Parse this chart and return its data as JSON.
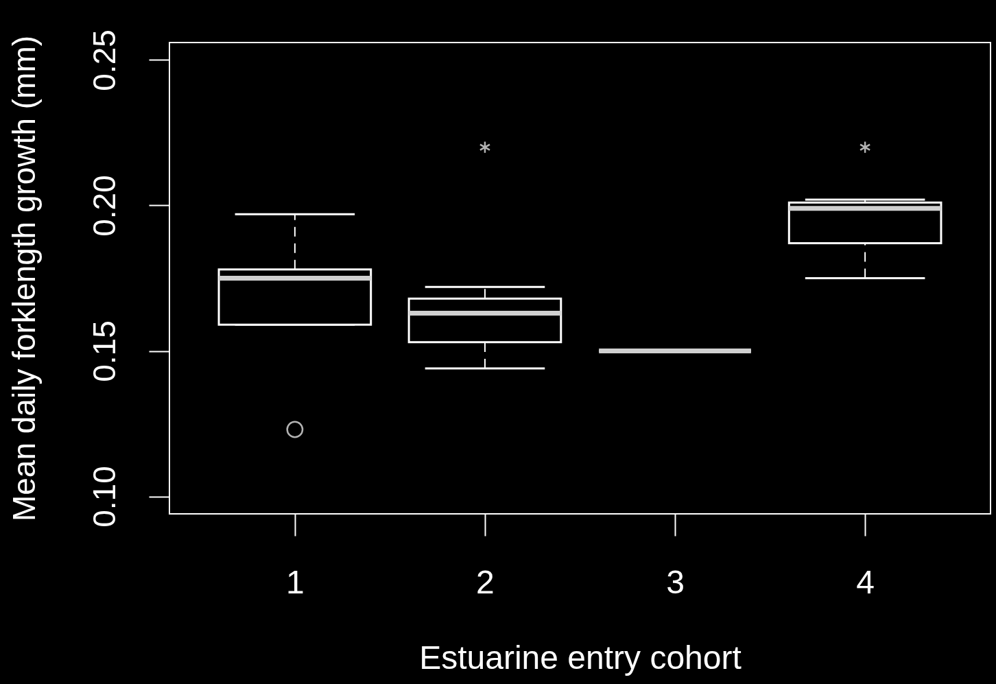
{
  "chart_data": {
    "type": "box",
    "xlabel": "Estuarine entry cohort",
    "ylabel": "Mean daily forklength growth (mm)",
    "categories": [
      "1",
      "2",
      "3",
      "4"
    ],
    "boxes": [
      {
        "low": 0.159,
        "q1": 0.159,
        "median": 0.175,
        "q3": 0.178,
        "high": 0.197,
        "outliers": [
          0.123
        ]
      },
      {
        "low": 0.144,
        "q1": 0.153,
        "median": 0.163,
        "q3": 0.168,
        "high": 0.172,
        "outliers": [
          0.22
        ]
      },
      {
        "low": 0.15,
        "q1": 0.15,
        "median": 0.15,
        "q3": 0.15,
        "high": 0.15
      },
      {
        "low": 0.175,
        "q1": 0.187,
        "median": 0.199,
        "q3": 0.201,
        "high": 0.202,
        "outliers": [
          0.22
        ]
      }
    ],
    "ylim": [
      0.094,
      0.256
    ],
    "yticks": [
      {
        "value": 0.1,
        "label": "0.10"
      },
      {
        "value": 0.15,
        "label": "0.15"
      },
      {
        "value": 0.2,
        "label": "0.20"
      },
      {
        "value": 0.25,
        "label": "0.25"
      }
    ],
    "line_style": "dashed"
  }
}
